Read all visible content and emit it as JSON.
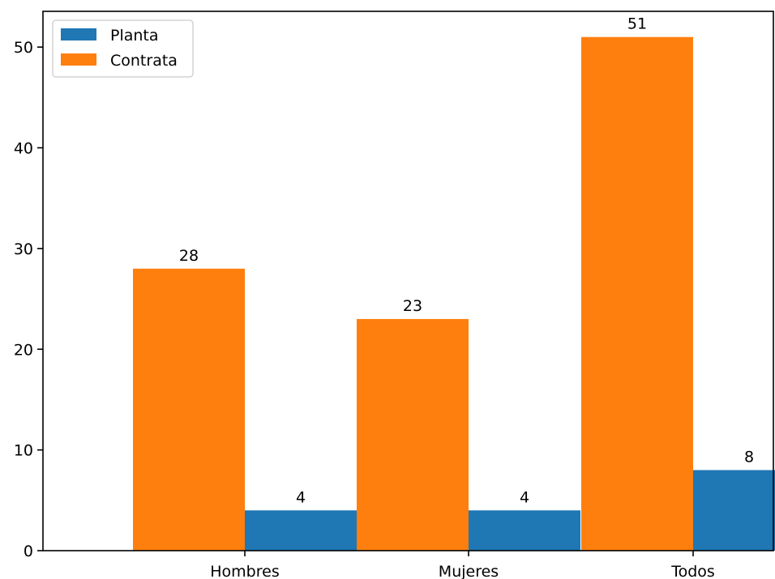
{
  "chart_data": {
    "type": "bar",
    "categories": [
      "Hombres",
      "Mujeres",
      "Todos"
    ],
    "series": [
      {
        "name": "Planta",
        "values": [
          4,
          4,
          8
        ],
        "color": "#1f77b4"
      },
      {
        "name": "Contrata",
        "values": [
          28,
          23,
          51
        ],
        "color": "#ff7f0e"
      }
    ],
    "ylim": [
      0,
      53.55
    ],
    "yticks": [
      0,
      10,
      20,
      30,
      40,
      50
    ],
    "legend_position": "top-left",
    "grid": false,
    "data_labels": true
  }
}
